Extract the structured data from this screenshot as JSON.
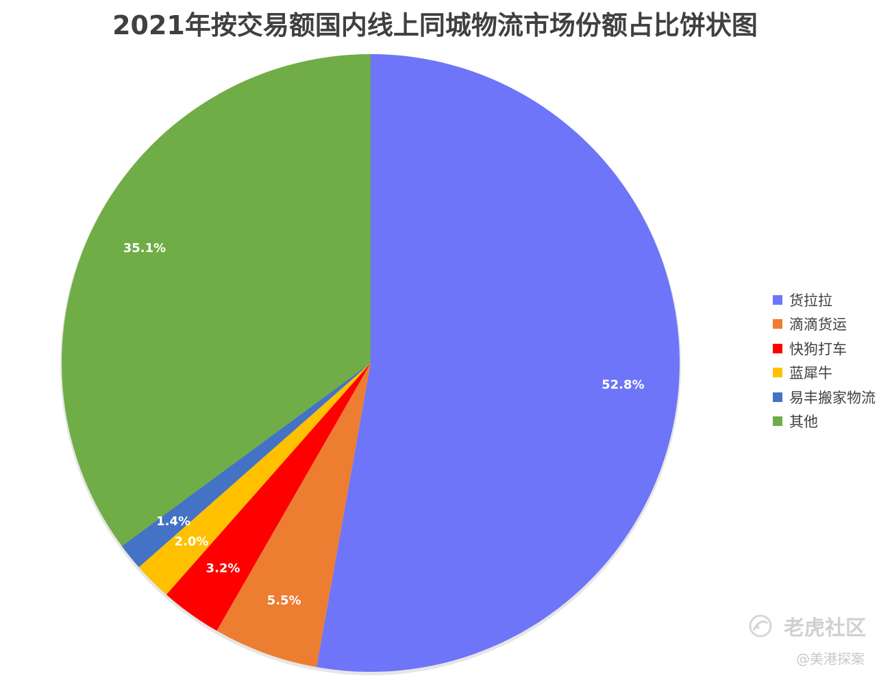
{
  "chart_data": {
    "type": "pie",
    "title": "2021年按交易额国内线上同城物流市场份额占比饼状图",
    "slices": [
      {
        "name": "货拉拉",
        "value": 52.8,
        "label": "52.8%",
        "color": "#6e75f8"
      },
      {
        "name": "滴滴货运",
        "value": 5.5,
        "label": "5.5%",
        "color": "#ed7d31"
      },
      {
        "name": "快狗打车",
        "value": 3.2,
        "label": "3.2%",
        "color": "#ff0000"
      },
      {
        "name": "蓝犀牛",
        "value": 2.0,
        "label": "2.0%",
        "color": "#ffc000"
      },
      {
        "name": "易丰搬家物流",
        "value": 1.4,
        "label": "1.4%",
        "color": "#4472c4"
      },
      {
        "name": "其他",
        "value": 35.1,
        "label": "35.1%",
        "color": "#70ad47"
      }
    ],
    "start_angle": "12 o'clock",
    "direction": "clockwise",
    "legend": {
      "position": "right"
    }
  },
  "watermark": {
    "name": "老虎社区",
    "author": "@美港探案",
    "logo_icon": "tiger-community-logo-icon"
  }
}
